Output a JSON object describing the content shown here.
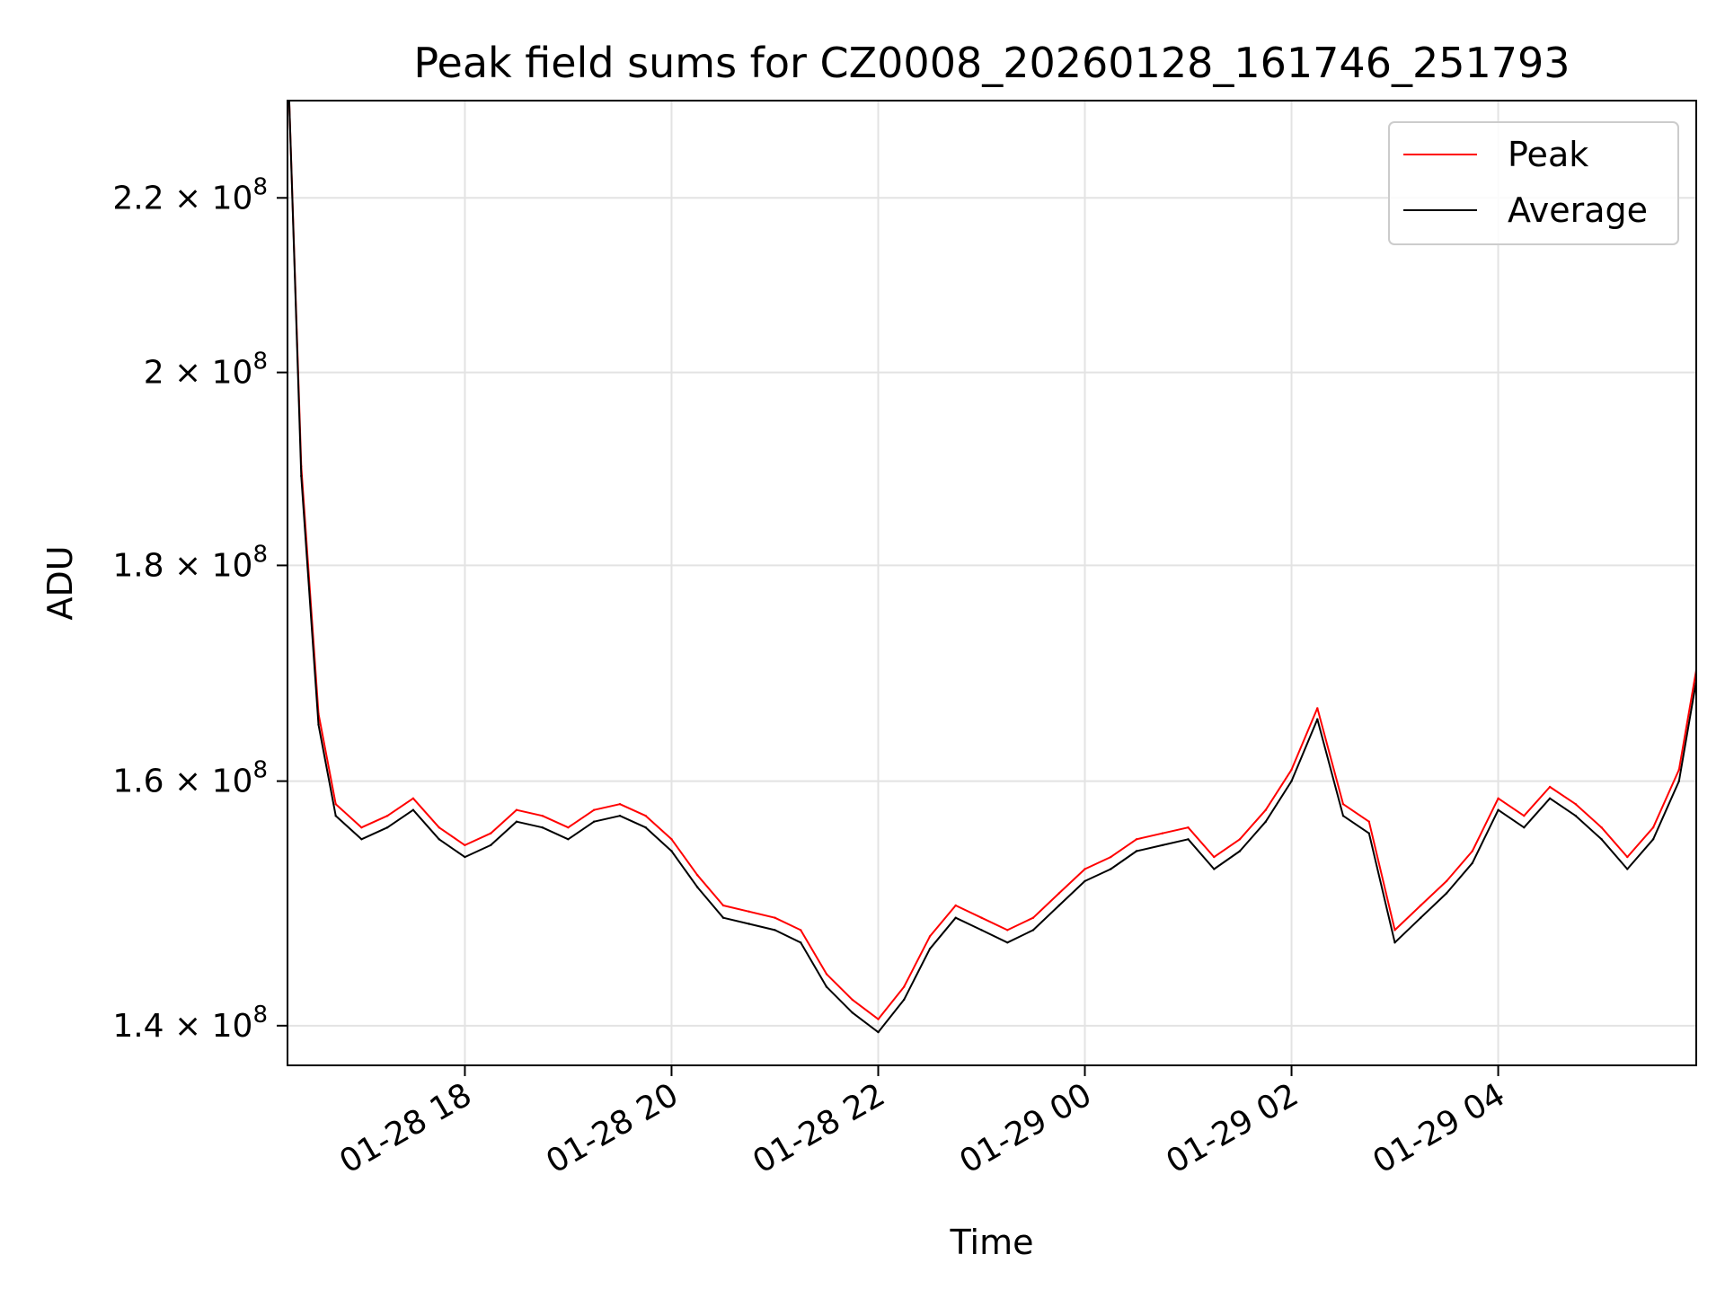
{
  "chart_data": {
    "type": "line",
    "title": "Peak field sums for CZ0008_20260128_161746_251793",
    "xlabel": "Time",
    "ylabel": "ADU",
    "y_scale": "log",
    "xlim": [
      "2026-01-28 16:17:46",
      "2026-01-29 05:55:00"
    ],
    "ylim": [
      137000000,
      232000000
    ],
    "x_ticks": [
      "01-28 18",
      "01-28 20",
      "01-28 22",
      "01-29 00",
      "01-29 02",
      "01-29 04"
    ],
    "x_tick_values": [
      "2026-01-28 18:00",
      "2026-01-28 20:00",
      "2026-01-28 22:00",
      "2026-01-29 00:00",
      "2026-01-29 02:00",
      "2026-01-29 04:00"
    ],
    "y_ticks": [
      {
        "value": 140000000,
        "mantissa": "1.4",
        "exp": "8"
      },
      {
        "value": 160000000,
        "mantissa": "1.6",
        "exp": "8"
      },
      {
        "value": 180000000,
        "mantissa": "1.8",
        "exp": "8"
      },
      {
        "value": 200000000,
        "mantissa": "2",
        "exp": "8"
      },
      {
        "value": 220000000,
        "mantissa": "2.2",
        "exp": "8"
      }
    ],
    "grid": true,
    "legend_position": "top-right",
    "x": [
      "2026-01-28 16:18",
      "2026-01-28 16:25",
      "2026-01-28 16:35",
      "2026-01-28 16:45",
      "2026-01-28 17:00",
      "2026-01-28 17:15",
      "2026-01-28 17:30",
      "2026-01-28 17:45",
      "2026-01-28 18:00",
      "2026-01-28 18:15",
      "2026-01-28 18:30",
      "2026-01-28 18:45",
      "2026-01-28 19:00",
      "2026-01-28 19:15",
      "2026-01-28 19:30",
      "2026-01-28 19:45",
      "2026-01-28 20:00",
      "2026-01-28 20:15",
      "2026-01-28 20:30",
      "2026-01-28 20:45",
      "2026-01-28 21:00",
      "2026-01-28 21:15",
      "2026-01-28 21:30",
      "2026-01-28 21:45",
      "2026-01-28 22:00",
      "2026-01-28 22:15",
      "2026-01-28 22:30",
      "2026-01-28 22:45",
      "2026-01-28 23:00",
      "2026-01-28 23:15",
      "2026-01-28 23:30",
      "2026-01-28 23:45",
      "2026-01-29 00:00",
      "2026-01-29 00:15",
      "2026-01-29 00:30",
      "2026-01-29 00:45",
      "2026-01-29 01:00",
      "2026-01-29 01:15",
      "2026-01-29 01:30",
      "2026-01-29 01:45",
      "2026-01-29 02:00",
      "2026-01-29 02:15",
      "2026-01-29 02:30",
      "2026-01-29 02:45",
      "2026-01-29 03:00",
      "2026-01-29 03:15",
      "2026-01-29 03:30",
      "2026-01-29 03:45",
      "2026-01-29 04:00",
      "2026-01-29 04:15",
      "2026-01-29 04:30",
      "2026-01-29 04:45",
      "2026-01-29 05:00",
      "2026-01-29 05:15",
      "2026-01-29 05:30",
      "2026-01-29 05:45",
      "2026-01-29 05:55"
    ],
    "series": [
      {
        "name": "Peak",
        "color": "#ff0000",
        "values": [
          232000000,
          190000000,
          166000000,
          158000000,
          156000000,
          157000000,
          158500000,
          156000000,
          154500000,
          155500000,
          157500000,
          157000000,
          156000000,
          157500000,
          158000000,
          157000000,
          155000000,
          152000000,
          149500000,
          149000000,
          148500000,
          147500000,
          144000000,
          142000000,
          140500000,
          143000000,
          147000000,
          149500000,
          148500000,
          147500000,
          148500000,
          150500000,
          152500000,
          153500000,
          155000000,
          155500000,
          156000000,
          153500000,
          155000000,
          157500000,
          161000000,
          166500000,
          158000000,
          156500000,
          147500000,
          149500000,
          151500000,
          154000000,
          158500000,
          157000000,
          159500000,
          158000000,
          156000000,
          153500000,
          156000000,
          161000000,
          170000000
        ]
      },
      {
        "name": "Average",
        "color": "#000000",
        "values": [
          232000000,
          189000000,
          165000000,
          157000000,
          155000000,
          156000000,
          157500000,
          155000000,
          153500000,
          154500000,
          156500000,
          156000000,
          155000000,
          156500000,
          157000000,
          156000000,
          154000000,
          151000000,
          148500000,
          148000000,
          147500000,
          146500000,
          143000000,
          141000000,
          139500000,
          142000000,
          146000000,
          148500000,
          147500000,
          146500000,
          147500000,
          149500000,
          151500000,
          152500000,
          154000000,
          154500000,
          155000000,
          152500000,
          154000000,
          156500000,
          160000000,
          165500000,
          157000000,
          155500000,
          146500000,
          148500000,
          150500000,
          153000000,
          157500000,
          156000000,
          158500000,
          157000000,
          155000000,
          152500000,
          155000000,
          160000000,
          169000000
        ]
      }
    ]
  }
}
